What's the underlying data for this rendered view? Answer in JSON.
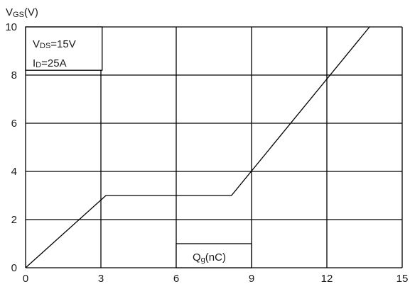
{
  "chart_data": {
    "type": "line",
    "ylabel": {
      "main": "V",
      "sub": "GS",
      "unit": "(V)"
    },
    "xlabel": {
      "main": "Q",
      "sub": "g",
      "unit": "(nC)"
    },
    "conditions": [
      {
        "main": "V",
        "sub": "DS",
        "value": "=15V"
      },
      {
        "main": "I",
        "sub": "D",
        "value": "=25A"
      }
    ],
    "xlim": [
      0,
      15
    ],
    "ylim": [
      0,
      10
    ],
    "x_ticks": [
      "0",
      "3",
      "6",
      "9",
      "12",
      "15"
    ],
    "y_ticks": [
      "0",
      "2",
      "4",
      "6",
      "8",
      "10"
    ],
    "grid": true,
    "series": [
      {
        "x": [
          0,
          3.2,
          8.2,
          13.7
        ],
        "y": [
          0,
          3.0,
          3.0,
          10.0
        ]
      }
    ]
  }
}
